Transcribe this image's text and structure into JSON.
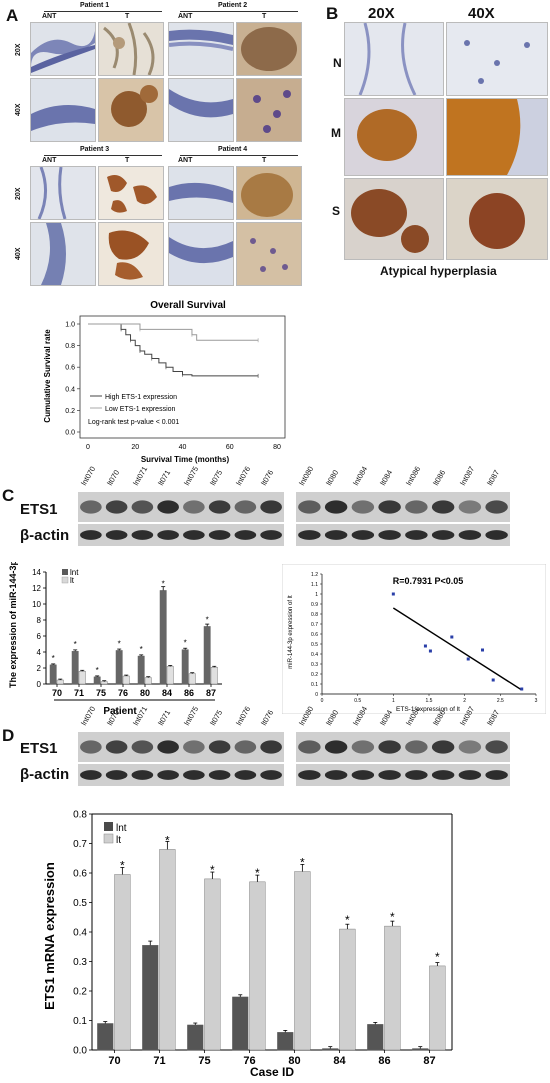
{
  "panelA": {
    "label": "A",
    "patients": [
      "Patient 1",
      "Patient 2",
      "Patient 3",
      "Patient 4"
    ],
    "col_ant": "ANT",
    "col_t": "T",
    "row_20x": "20X",
    "row_40x": "40X"
  },
  "panelB": {
    "label": "B",
    "col_20x": "20X",
    "col_40x": "40X",
    "rows": [
      "N",
      "M",
      "S"
    ],
    "caption": "Atypical hyperplasia"
  },
  "survival": {
    "title": "Overall Survival",
    "ylabel": "Cumulative Survival rate",
    "xlabel": "Survival Time (months)",
    "legend_high": "High ETS-1 expression",
    "legend_low": "Low ETS-1 expression",
    "logrank": "Log-rank test p-value < 0.001",
    "yticks": [
      "0.0",
      "0.2",
      "0.4",
      "0.6",
      "0.8",
      "1.0"
    ],
    "xticks": [
      "0",
      "20",
      "40",
      "60",
      "80"
    ]
  },
  "panelC": {
    "label": "C",
    "lanes_left": [
      "lnt070",
      "lt070",
      "lnt071",
      "lt071",
      "lnt075",
      "lt075",
      "lnt076",
      "lt076"
    ],
    "lanes_right": [
      "lnt080",
      "lt080",
      "lnt084",
      "lt084",
      "lnt086",
      "lt086",
      "lnt087",
      "lt087"
    ],
    "row_ets1": "ETS1",
    "row_actin": "β-actin"
  },
  "panelD": {
    "label": "D",
    "lanes_left": [
      "lnt070",
      "lt070",
      "lnt071",
      "lt071",
      "lnt075",
      "lt075",
      "lnt076",
      "lt076"
    ],
    "lanes_right": [
      "lnt080",
      "lt080",
      "lnt084",
      "lt084",
      "lnt086",
      "lt086",
      "lnt087",
      "lt087"
    ],
    "row_ets1": "ETS1",
    "row_actin": "β-actin"
  },
  "chart_data": [
    {
      "type": "line",
      "title": "Overall Survival",
      "xlabel": "Survival Time (months)",
      "ylabel": "Cumulative Survival rate",
      "xlim": [
        0,
        80
      ],
      "ylim": [
        0,
        1.0
      ],
      "series": [
        {
          "name": "High ETS-1 expression",
          "x": [
            0,
            12,
            14,
            16,
            18,
            20,
            22,
            24,
            27,
            30,
            33,
            36,
            40,
            44,
            72
          ],
          "y": [
            1.0,
            1.0,
            0.95,
            0.9,
            0.85,
            0.8,
            0.75,
            0.72,
            0.68,
            0.64,
            0.6,
            0.56,
            0.53,
            0.52,
            0.52
          ]
        },
        {
          "name": "Low ETS-1 expression",
          "x": [
            0,
            20,
            22,
            42,
            44,
            46,
            72
          ],
          "y": [
            1.0,
            1.0,
            0.95,
            0.95,
            0.9,
            0.85,
            0.85
          ]
        }
      ],
      "annotation": "Log-rank test p-value < 0.001"
    },
    {
      "type": "bar",
      "ylabel": "The expression of miR-144-3p",
      "xlabel": "Patient",
      "categories": [
        "70",
        "71",
        "75",
        "76",
        "80",
        "84",
        "86",
        "87"
      ],
      "ylim": [
        0,
        14
      ],
      "yticks": [
        "0",
        "2",
        "4",
        "6",
        "8",
        "10",
        "12",
        "14"
      ],
      "series": [
        {
          "name": "lnt",
          "values": [
            2.4,
            4.1,
            0.9,
            4.2,
            3.5,
            11.7,
            4.3,
            7.2
          ]
        },
        {
          "name": "lt",
          "values": [
            0.5,
            1.6,
            0.3,
            1.0,
            0.8,
            2.2,
            1.3,
            2.1
          ]
        }
      ],
      "significance": [
        "*",
        "*",
        "*",
        "*",
        "*",
        "*",
        "*",
        "*"
      ]
    },
    {
      "type": "scatter",
      "annotation": "R=0.7931 P<0.05",
      "xlabel": "ETS-1 expression of lt",
      "ylabel": "miR-144-3p expression of lt",
      "xlim": [
        0,
        3
      ],
      "ylim": [
        0,
        1.2
      ],
      "xticks": [
        "0",
        "0.5",
        "1",
        "1.5",
        "2",
        "2.5",
        "3"
      ],
      "yticks": [
        "0",
        "0.1",
        "0.2",
        "0.3",
        "0.4",
        "0.5",
        "0.6",
        "0.7",
        "0.8",
        "0.9",
        "1",
        "1.1",
        "1.2"
      ],
      "points": [
        [
          1.0,
          1.0
        ],
        [
          1.45,
          0.48
        ],
        [
          1.52,
          0.43
        ],
        [
          1.82,
          0.57
        ],
        [
          2.05,
          0.35
        ],
        [
          2.25,
          0.44
        ],
        [
          2.4,
          0.14
        ],
        [
          2.8,
          0.05
        ]
      ],
      "fit_line": [
        [
          1.0,
          0.86
        ],
        [
          2.8,
          0.04
        ]
      ]
    },
    {
      "type": "bar",
      "ylabel": "ETS1 mRNA expression",
      "xlabel": "Case ID",
      "categories": [
        "70",
        "71",
        "75",
        "76",
        "80",
        "84",
        "86",
        "87"
      ],
      "ylim": [
        0,
        0.8
      ],
      "yticks": [
        "0.0",
        "0.1",
        "0.2",
        "0.3",
        "0.4",
        "0.5",
        "0.6",
        "0.7",
        "0.8"
      ],
      "series": [
        {
          "name": "lnt",
          "values": [
            0.09,
            0.355,
            0.085,
            0.18,
            0.06,
            0.005,
            0.087,
            0.005
          ]
        },
        {
          "name": "lt",
          "values": [
            0.595,
            0.68,
            0.58,
            0.57,
            0.605,
            0.41,
            0.42,
            0.285
          ]
        }
      ],
      "significance": [
        "*",
        "*",
        "*",
        "*",
        "*",
        "*",
        "*",
        "*"
      ]
    }
  ]
}
